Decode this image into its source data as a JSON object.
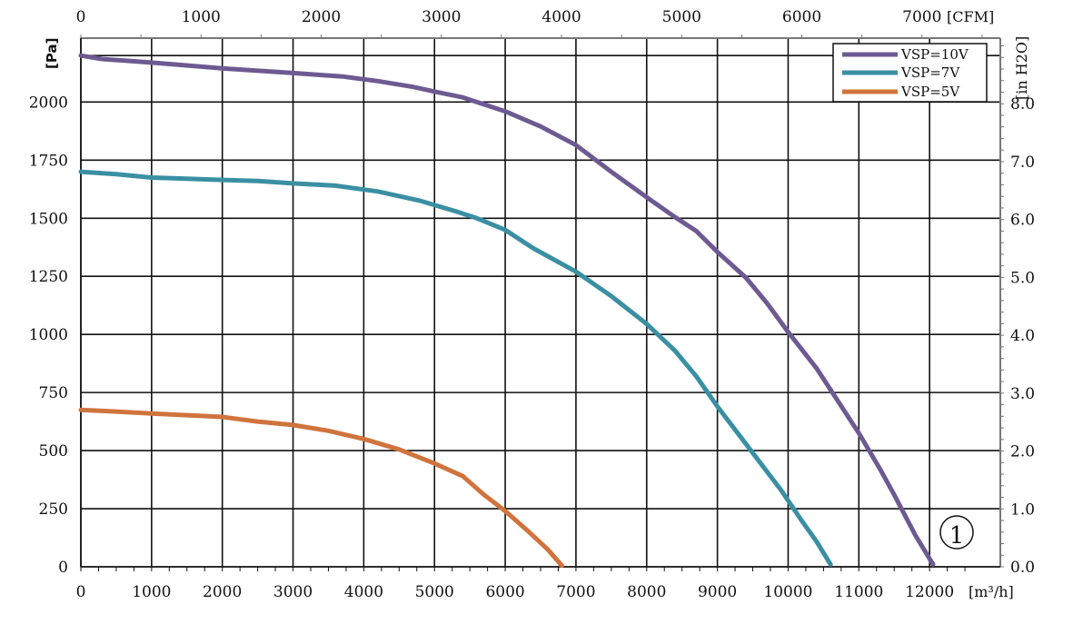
{
  "chart_data": {
    "type": "line",
    "x_unit_bottom": "[m³/h]",
    "x_unit_top": "[CFM]",
    "y_unit_left": "[Pa]",
    "y_unit_right": "[in H2O]",
    "xlim": [
      0,
      13000
    ],
    "ylim": [
      0,
      2275
    ],
    "x_ticks_bottom": [
      "0",
      "1000",
      "2000",
      "3000",
      "4000",
      "5000",
      "6000",
      "7000",
      "8000",
      "9000",
      "10000",
      "11000",
      "12000"
    ],
    "y_ticks_left": [
      "0",
      "250",
      "500",
      "750",
      "1000",
      "1250",
      "1500",
      "1750",
      "2000"
    ],
    "x_ticks_top": [
      "0",
      "1000",
      "2000",
      "3000",
      "4000",
      "5000",
      "6000",
      "7000"
    ],
    "y_ticks_right": [
      "0.0",
      "1.0",
      "2.0",
      "3.0",
      "4.0",
      "5.0",
      "6.0",
      "7.0",
      "8.0"
    ],
    "cfm_per_m3h": 0.5886,
    "pa_per_inh2o": 249.09,
    "grid": true,
    "legend_position": "top-right",
    "badge": "1",
    "series": [
      {
        "name": "VSP=10V",
        "color": "#6e5a92",
        "points": [
          [
            0,
            2200
          ],
          [
            300,
            2185
          ],
          [
            1000,
            2170
          ],
          [
            2000,
            2145
          ],
          [
            3000,
            2125
          ],
          [
            3700,
            2110
          ],
          [
            4200,
            2090
          ],
          [
            4700,
            2065
          ],
          [
            5000,
            2045
          ],
          [
            5400,
            2020
          ],
          [
            6000,
            1960
          ],
          [
            6500,
            1895
          ],
          [
            7000,
            1815
          ],
          [
            7500,
            1700
          ],
          [
            8000,
            1590
          ],
          [
            8400,
            1505
          ],
          [
            8700,
            1445
          ],
          [
            9000,
            1355
          ],
          [
            9400,
            1245
          ],
          [
            9700,
            1135
          ],
          [
            10000,
            1010
          ],
          [
            10400,
            855
          ],
          [
            10700,
            715
          ],
          [
            11000,
            575
          ],
          [
            11300,
            420
          ],
          [
            11500,
            310
          ],
          [
            11800,
            135
          ],
          [
            12050,
            10
          ]
        ]
      },
      {
        "name": "VSP=7V",
        "color": "#3a8fa3",
        "points": [
          [
            0,
            1700
          ],
          [
            500,
            1690
          ],
          [
            1000,
            1675
          ],
          [
            1500,
            1670
          ],
          [
            2000,
            1665
          ],
          [
            2500,
            1660
          ],
          [
            3000,
            1650
          ],
          [
            3600,
            1640
          ],
          [
            4200,
            1615
          ],
          [
            4800,
            1575
          ],
          [
            5300,
            1530
          ],
          [
            5600,
            1500
          ],
          [
            6000,
            1450
          ],
          [
            6400,
            1370
          ],
          [
            7000,
            1270
          ],
          [
            7500,
            1165
          ],
          [
            8000,
            1045
          ],
          [
            8400,
            930
          ],
          [
            8700,
            820
          ],
          [
            9000,
            690
          ],
          [
            9300,
            570
          ],
          [
            9600,
            450
          ],
          [
            9900,
            330
          ],
          [
            10200,
            195
          ],
          [
            10400,
            110
          ],
          [
            10600,
            10
          ]
        ]
      },
      {
        "name": "VSP=5V",
        "color": "#d0733d",
        "points": [
          [
            0,
            675
          ],
          [
            500,
            668
          ],
          [
            1000,
            660
          ],
          [
            2000,
            645
          ],
          [
            2500,
            625
          ],
          [
            3000,
            610
          ],
          [
            3500,
            585
          ],
          [
            4000,
            550
          ],
          [
            4500,
            505
          ],
          [
            5000,
            445
          ],
          [
            5400,
            390
          ],
          [
            5700,
            310
          ],
          [
            6000,
            240
          ],
          [
            6300,
            160
          ],
          [
            6600,
            75
          ],
          [
            6800,
            5
          ]
        ]
      }
    ]
  }
}
